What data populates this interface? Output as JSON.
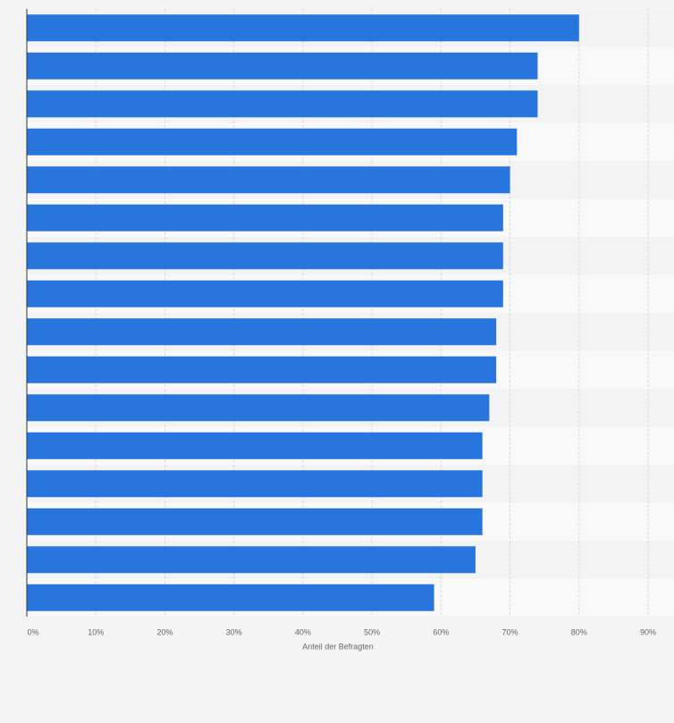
{
  "chart_data": {
    "type": "bar",
    "orientation": "horizontal",
    "categories": [
      null,
      null,
      null,
      null,
      null,
      null,
      null,
      null,
      null,
      null,
      null,
      null,
      null,
      null,
      null,
      null
    ],
    "values": [
      80,
      74,
      74,
      71,
      70,
      69,
      69,
      69,
      68,
      68,
      67,
      66,
      66,
      66,
      65,
      59
    ],
    "color": "#2876dd",
    "xlabel": "Anteil der Befragten",
    "xlim": [
      0,
      90
    ],
    "xticks": [
      {
        "value": 0,
        "label": "0%"
      },
      {
        "value": 10,
        "label": "10%"
      },
      {
        "value": 20,
        "label": "20%"
      },
      {
        "value": 30,
        "label": "30%"
      },
      {
        "value": 40,
        "label": "40%"
      },
      {
        "value": 50,
        "label": "50%"
      },
      {
        "value": 60,
        "label": "60%"
      },
      {
        "value": 70,
        "label": "70%"
      },
      {
        "value": 80,
        "label": "80%"
      },
      {
        "value": 90,
        "label": "90%"
      }
    ],
    "grid": true
  }
}
